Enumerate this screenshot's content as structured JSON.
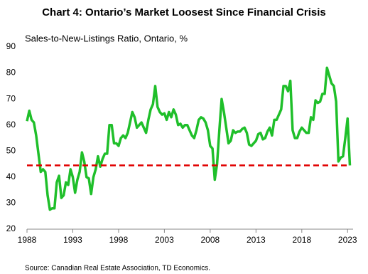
{
  "chart_data": {
    "type": "line",
    "title": "Chart 4: Ontario’s Market Loosest Since Financial Crisis",
    "subtitle": "Sales-to-New-Listings Ratio, Ontario, %",
    "source": "Source: Canadian Real Estate Association, TD Economics.",
    "x": [
      1988,
      1988.25,
      1988.5,
      1988.75,
      1989,
      1989.25,
      1989.5,
      1989.75,
      1990,
      1990.25,
      1990.5,
      1990.75,
      1991,
      1991.25,
      1991.5,
      1991.75,
      1992,
      1992.25,
      1992.5,
      1992.75,
      1993,
      1993.25,
      1993.5,
      1993.75,
      1994,
      1994.25,
      1994.5,
      1994.75,
      1995,
      1995.25,
      1995.5,
      1995.75,
      1996,
      1996.25,
      1996.5,
      1996.75,
      1997,
      1997.25,
      1997.5,
      1997.75,
      1998,
      1998.25,
      1998.5,
      1998.75,
      1999,
      1999.25,
      1999.5,
      1999.75,
      2000,
      2000.25,
      2000.5,
      2000.75,
      2001,
      2001.25,
      2001.5,
      2001.75,
      2002,
      2002.25,
      2002.5,
      2002.75,
      2003,
      2003.25,
      2003.5,
      2003.75,
      2004,
      2004.25,
      2004.5,
      2004.75,
      2005,
      2005.25,
      2005.5,
      2005.75,
      2006,
      2006.25,
      2006.5,
      2006.75,
      2007,
      2007.25,
      2007.5,
      2007.75,
      2008,
      2008.25,
      2008.5,
      2008.75,
      2009,
      2009.25,
      2009.5,
      2009.75,
      2010,
      2010.25,
      2010.5,
      2010.75,
      2011,
      2011.25,
      2011.5,
      2011.75,
      2012,
      2012.25,
      2012.5,
      2012.75,
      2013,
      2013.25,
      2013.5,
      2013.75,
      2014,
      2014.25,
      2014.5,
      2014.75,
      2015,
      2015.25,
      2015.5,
      2015.75,
      2016,
      2016.25,
      2016.5,
      2016.75,
      2017,
      2017.25,
      2017.5,
      2017.75,
      2018,
      2018.25,
      2018.5,
      2018.75,
      2019,
      2019.25,
      2019.5,
      2019.75,
      2020,
      2020.25,
      2020.5,
      2020.75,
      2021,
      2021.25,
      2021.5,
      2021.75,
      2022,
      2022.25,
      2022.5,
      2022.75,
      2023,
      2023.25
    ],
    "series": [
      {
        "color": "#1fbf2a",
        "values": [
          61.5,
          65.5,
          62,
          61,
          56,
          49,
          42,
          43,
          42,
          33,
          27.5,
          28,
          28,
          38,
          40.5,
          32,
          33,
          38,
          37,
          43,
          40,
          34,
          39,
          42,
          49.5,
          46,
          40,
          39.5,
          33.5,
          40,
          43,
          48,
          44,
          47,
          49,
          49,
          60,
          60,
          53,
          53,
          52,
          55,
          56,
          55,
          57,
          61,
          65,
          63,
          59,
          60,
          61,
          59,
          57,
          62,
          66,
          68,
          75,
          67,
          65,
          64,
          64.5,
          62,
          65,
          63,
          66,
          64,
          60,
          60.5,
          59,
          60,
          60,
          58,
          56,
          55,
          58,
          62,
          63,
          62.5,
          61,
          58,
          52,
          51,
          39,
          45,
          58,
          70,
          65,
          59,
          53,
          54,
          58,
          57,
          57.5,
          57.5,
          58.5,
          59,
          57,
          52.5,
          52,
          53,
          54,
          56.5,
          57,
          54.5,
          55,
          57.5,
          59,
          56,
          62,
          62,
          64,
          66,
          75,
          75,
          73,
          77,
          58,
          55,
          55,
          57.5,
          59,
          58,
          57,
          57,
          63,
          62,
          69.5,
          68.5,
          69,
          72,
          72,
          82,
          79,
          76,
          75,
          69,
          46,
          47.5,
          48,
          55,
          62.5,
          44.5
        ]
      }
    ],
    "reference_line": {
      "value": 44.5,
      "color": "#e00000"
    },
    "xlim": [
      1988,
      2023.6
    ],
    "xticks": [
      1988,
      1993,
      1998,
      2003,
      2008,
      2013,
      2018,
      2023
    ],
    "ylim": [
      20,
      90
    ],
    "yticks": [
      20,
      30,
      40,
      50,
      60,
      70,
      80,
      90
    ],
    "grid": false
  }
}
